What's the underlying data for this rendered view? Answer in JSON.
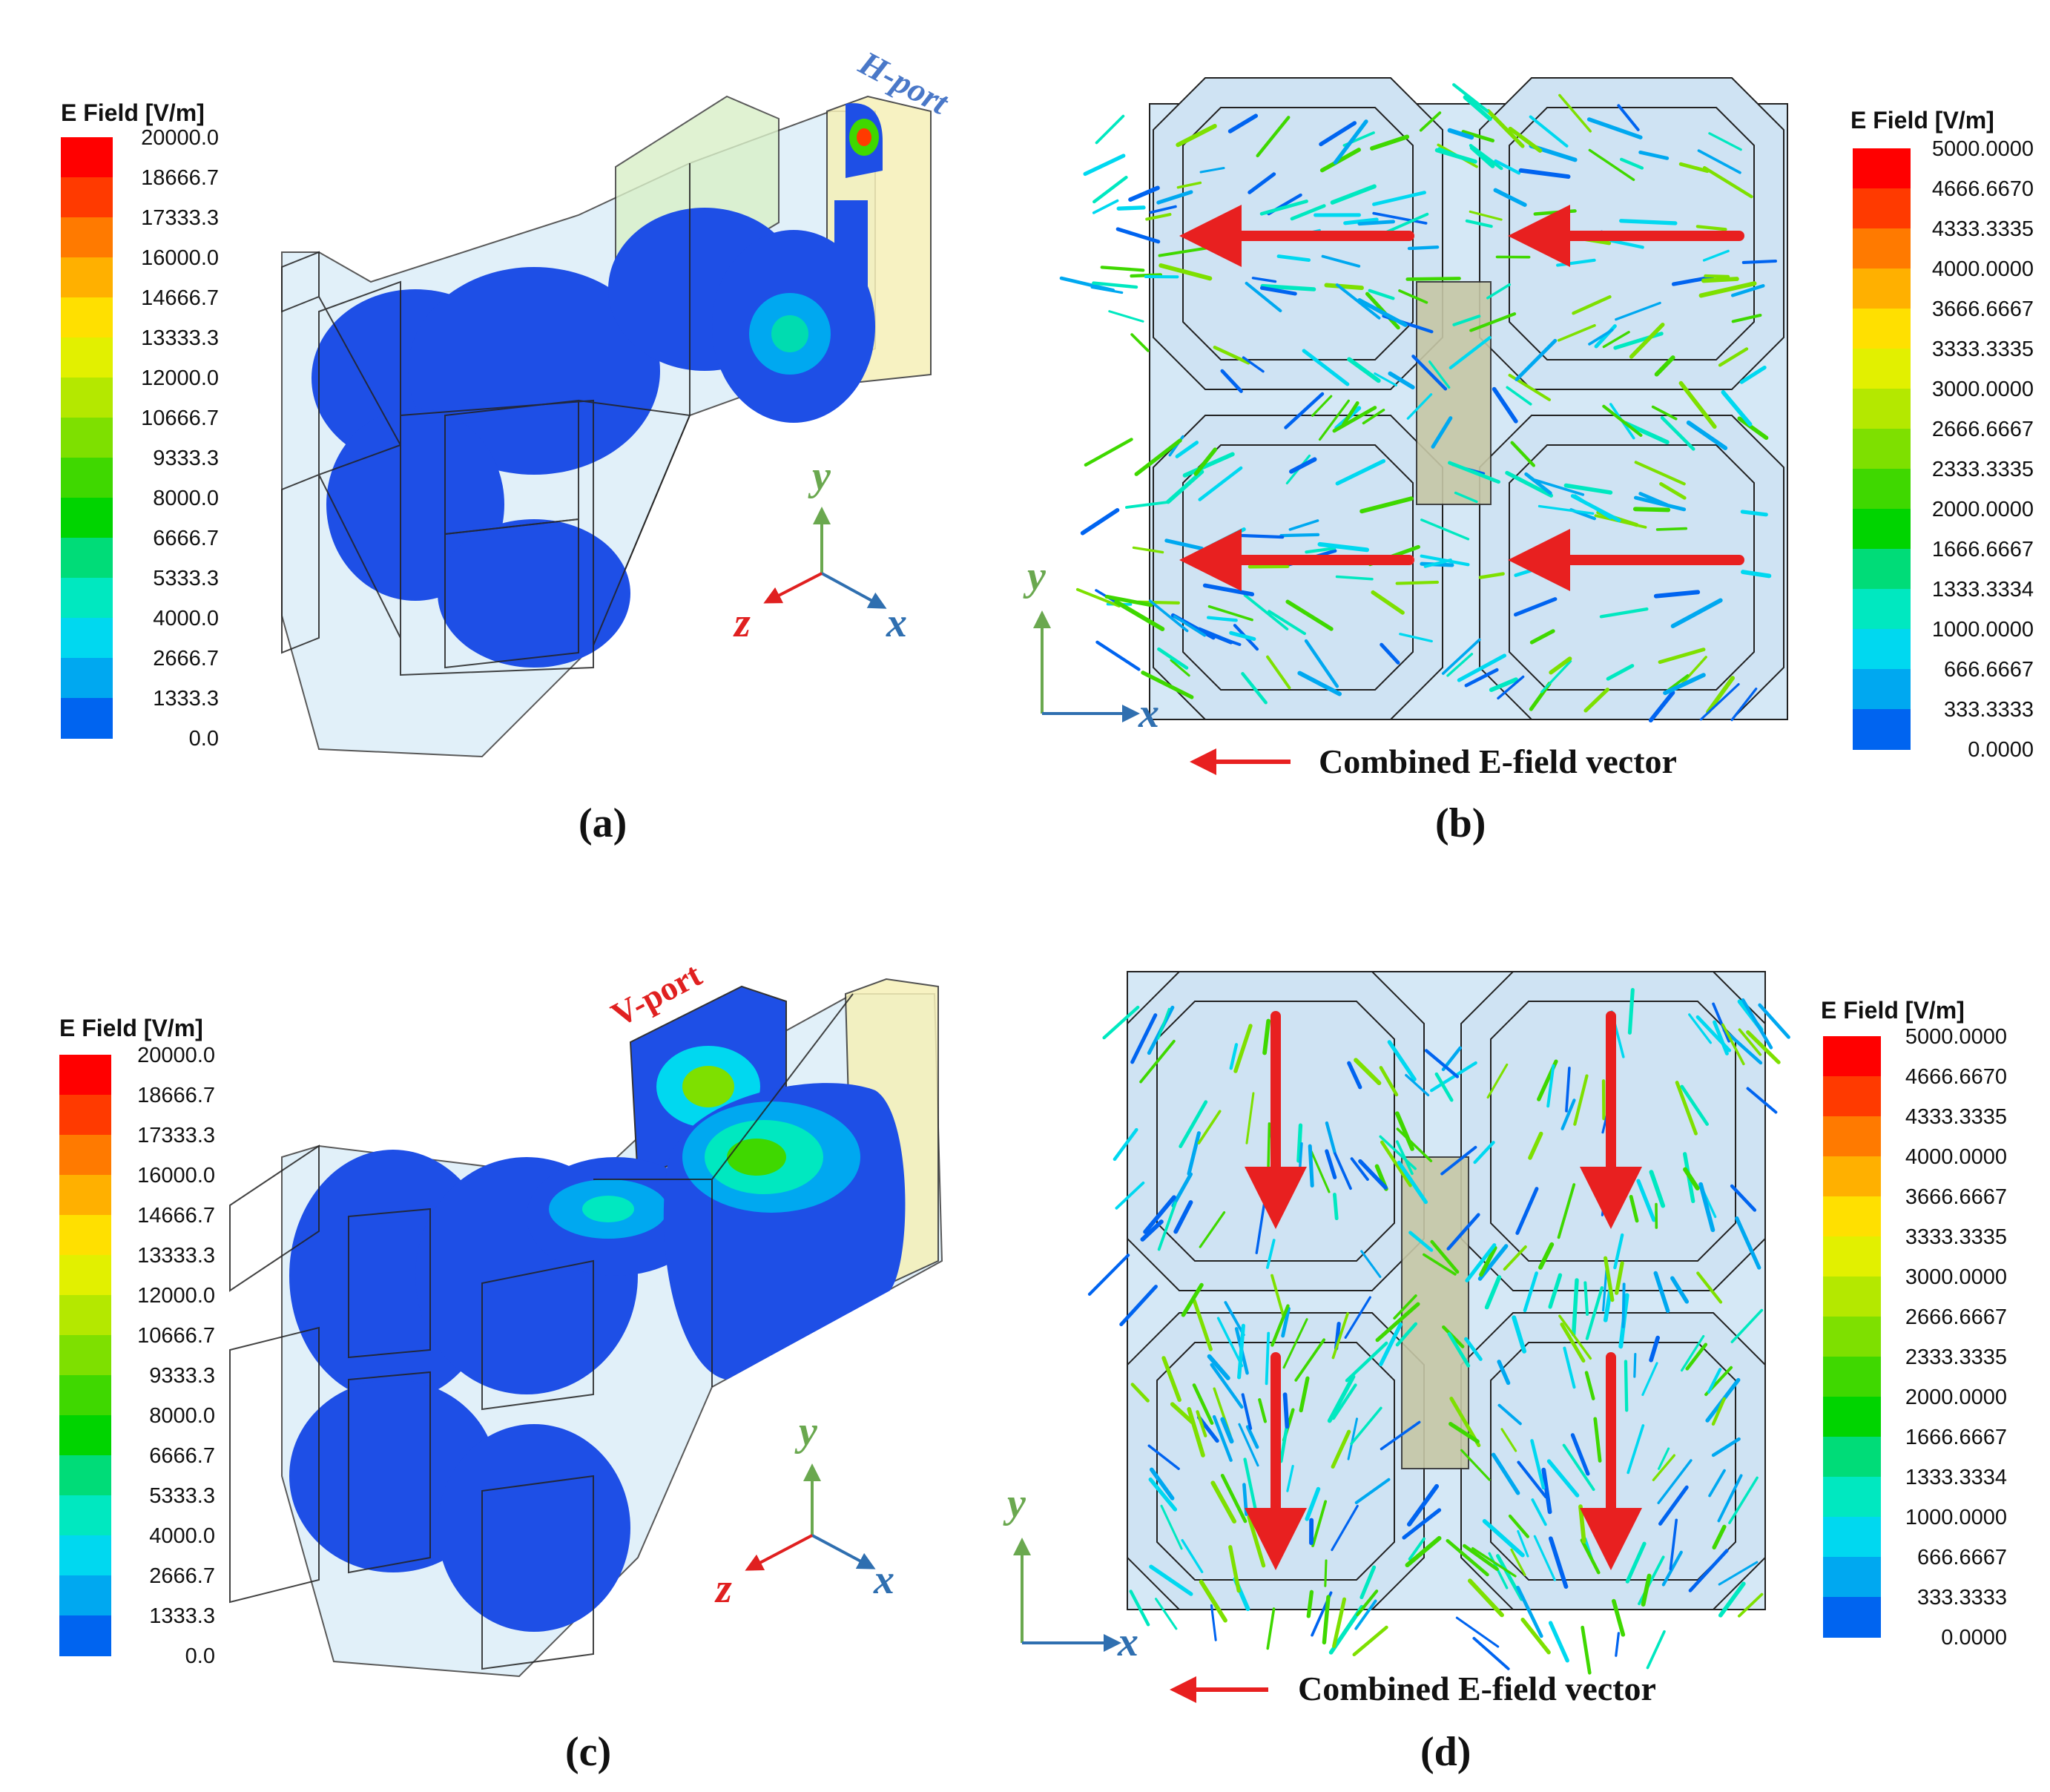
{
  "panels": [
    {
      "id": "a",
      "caption": "(a)",
      "port_label": "H-port",
      "legend": {
        "title": "E Field [V/m]",
        "ticks": [
          "20000.0",
          "18666.7",
          "17333.3",
          "16000.0",
          "14666.7",
          "13333.3",
          "12000.0",
          "10666.7",
          "9333.3",
          "8000.0",
          "6666.7",
          "5333.3",
          "4000.0",
          "2666.7",
          "1333.3",
          "0.0"
        ]
      },
      "axes": {
        "y": "y",
        "z": "z",
        "x": "x"
      }
    },
    {
      "id": "b",
      "caption": "(b)",
      "vector_legend": "Combined E-field vector",
      "legend": {
        "title": "E Field [V/m]",
        "ticks": [
          "5000.0000",
          "4666.6670",
          "4333.3335",
          "4000.0000",
          "3666.6667",
          "3333.3335",
          "3000.0000",
          "2666.6667",
          "2333.3335",
          "2000.0000",
          "1666.6667",
          "1333.3334",
          "1000.0000",
          "666.6667",
          "333.3333",
          "0.0000"
        ]
      },
      "axes": {
        "y": "y",
        "x": "x"
      },
      "main_arrow_direction": "-x"
    },
    {
      "id": "c",
      "caption": "(c)",
      "port_label": "V-port",
      "legend": {
        "title": "E Field [V/m]",
        "ticks": [
          "20000.0",
          "18666.7",
          "17333.3",
          "16000.0",
          "14666.7",
          "13333.3",
          "12000.0",
          "10666.7",
          "9333.3",
          "8000.0",
          "6666.7",
          "5333.3",
          "4000.0",
          "2666.7",
          "1333.3",
          "0.0"
        ]
      },
      "axes": {
        "y": "y",
        "z": "z",
        "x": "x"
      }
    },
    {
      "id": "d",
      "caption": "(d)",
      "vector_legend": "Combined E-field vector",
      "legend": {
        "title": "E Field [V/m]",
        "ticks": [
          "5000.0000",
          "4666.6670",
          "4333.3335",
          "4000.0000",
          "3666.6667",
          "3333.3335",
          "3000.0000",
          "2666.6667",
          "2333.3335",
          "2000.0000",
          "1666.6667",
          "1333.3334",
          "1000.0000",
          "666.6667",
          "333.3333",
          "0.0000"
        ]
      },
      "axes": {
        "y": "y",
        "x": "x"
      },
      "main_arrow_direction": "-y"
    }
  ],
  "colors": {
    "scale": [
      "#ff0000",
      "#ff3a00",
      "#ff7a00",
      "#ffb000",
      "#ffe000",
      "#e2f000",
      "#b4e800",
      "#7ee000",
      "#3fd800",
      "#00d400",
      "#00dc78",
      "#00e8c0",
      "#00d8f0",
      "#00a8f0",
      "#0064f0",
      "#0020ff"
    ],
    "port_h": "#4a78c8",
    "port_v": "#e02020",
    "main_arrow": "#e82020",
    "axis_x": "#2f6fb0",
    "axis_y": "#6aa84f",
    "axis_z": "#e02020",
    "field_blue": "#1e4fe6",
    "structure_fill": "#cfe6f5"
  }
}
